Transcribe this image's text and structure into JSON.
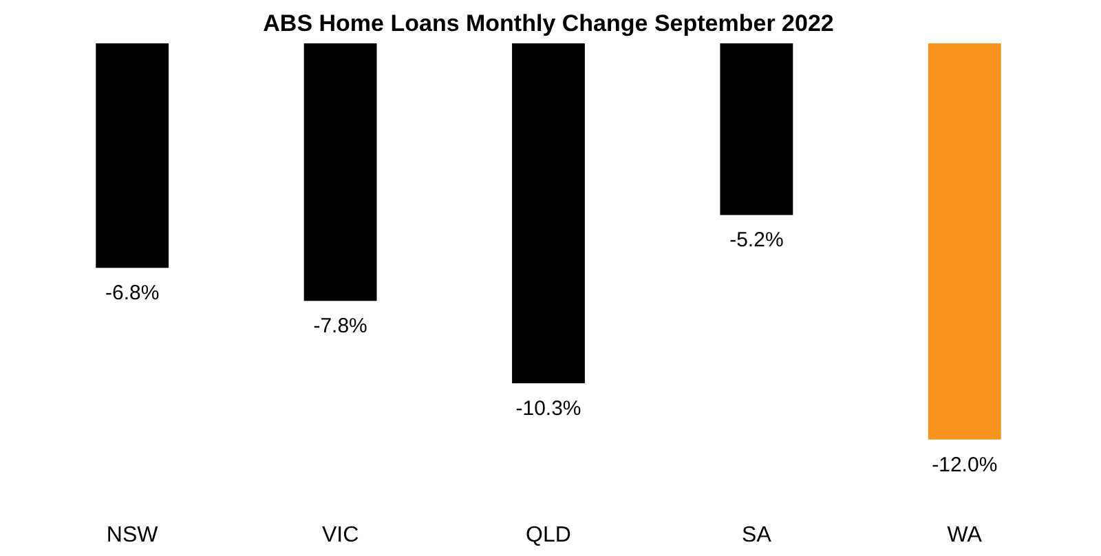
{
  "chart_data": {
    "type": "bar",
    "title": "ABS Home Loans Monthly Change September 2022",
    "categories": [
      "NSW",
      "VIC",
      "QLD",
      "SA",
      "WA"
    ],
    "values": [
      -6.8,
      -7.8,
      -10.3,
      -5.2,
      -12.0
    ],
    "colors": [
      "#000000",
      "#000000",
      "#000000",
      "#000000",
      "#f7941d"
    ],
    "value_labels": [
      "-6.8%",
      "-7.8%",
      "-10.3%",
      "-5.2%",
      "-12.0%"
    ],
    "grid": false
  }
}
